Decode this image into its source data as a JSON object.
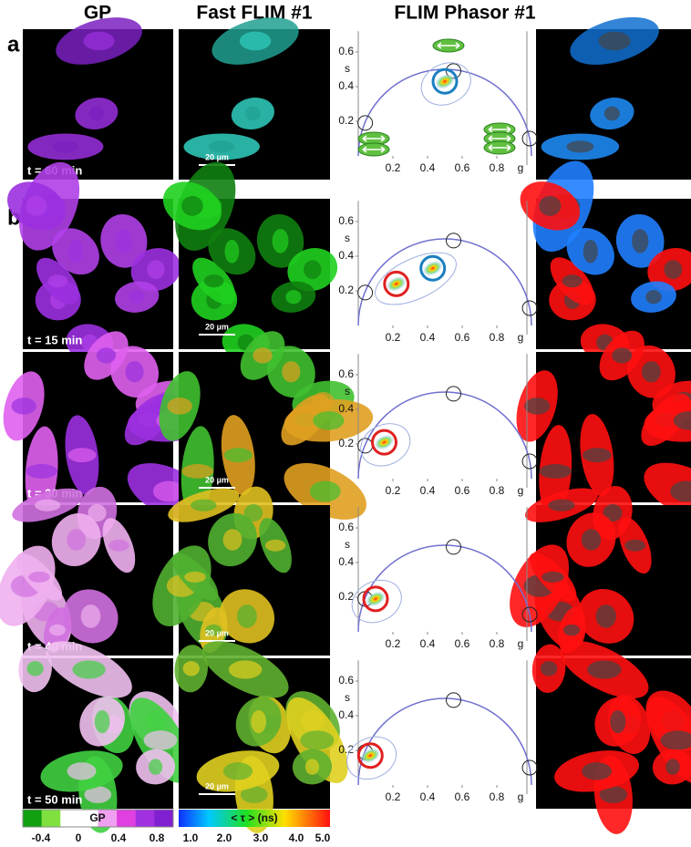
{
  "headers": [
    "GP",
    "Fast FLIM #1",
    "FLIM Phasor #1"
  ],
  "row_labels": [
    "a",
    "b"
  ],
  "phasor": {
    "xlim": [
      0,
      1
    ],
    "ylim": [
      0,
      0.72
    ],
    "xticks": [
      0.2,
      0.4,
      0.6,
      0.8
    ],
    "yticks": [
      0.2,
      0.4,
      0.6
    ],
    "xlabel": "g",
    "ylabel": "s",
    "reference_points": [
      [
        0.04,
        0.19
      ],
      [
        0.55,
        0.49
      ],
      [
        0.99,
        0.1
      ]
    ]
  },
  "panels": [
    {
      "time": "t = 60 min",
      "scale_bar": "20 µm",
      "cursors": [
        {
          "g": 0.5,
          "s": 0.43,
          "color": "#1a7fc0"
        }
      ]
    },
    {
      "time": "t = 15 min",
      "scale_bar": "20 µm",
      "cursors": [
        {
          "g": 0.22,
          "s": 0.24,
          "color": "#e02020"
        },
        {
          "g": 0.43,
          "s": 0.33,
          "color": "#1a7fc0"
        }
      ]
    },
    {
      "time": "t = 30 min",
      "scale_bar": "20 µm",
      "cursors": [
        {
          "g": 0.15,
          "s": 0.21,
          "color": "#e02020"
        }
      ]
    },
    {
      "time": "t = 40 min",
      "scale_bar": "20 µm",
      "cursors": [
        {
          "g": 0.1,
          "s": 0.19,
          "color": "#e02020"
        }
      ]
    },
    {
      "time": "t = 50 min",
      "scale_bar": "20 µm",
      "cursors": [
        {
          "g": 0.07,
          "s": 0.17,
          "color": "#e02020"
        }
      ]
    }
  ],
  "gp_colorbar": {
    "title": "GP",
    "labels": [
      "-0.4",
      "0",
      "0.4",
      "0.8"
    ]
  },
  "flim_colorbar": {
    "title": "< τ > (ns)",
    "labels": [
      "1.0",
      "2.0",
      "3.0",
      "4.0",
      "5.0"
    ]
  }
}
